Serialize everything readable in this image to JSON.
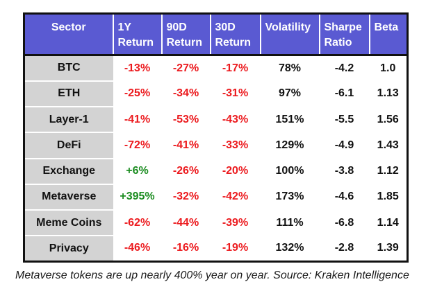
{
  "chart_data": {
    "type": "table",
    "columns": [
      {
        "key": "sector",
        "label": "Sector",
        "colorize_by_sign": false
      },
      {
        "key": "return_1y",
        "label": "1Y\nReturn",
        "colorize_by_sign": true
      },
      {
        "key": "return_90d",
        "label": "90D\nReturn",
        "colorize_by_sign": true
      },
      {
        "key": "return_30d",
        "label": "30D\nReturn",
        "colorize_by_sign": true
      },
      {
        "key": "volatility",
        "label": "Volatility",
        "colorize_by_sign": false
      },
      {
        "key": "sharpe_ratio",
        "label": "Sharpe\nRatio",
        "colorize_by_sign": false
      },
      {
        "key": "beta",
        "label": "Beta",
        "colorize_by_sign": false
      }
    ],
    "rows": [
      {
        "sector": "BTC",
        "return_1y": "-13%",
        "return_90d": "-27%",
        "return_30d": "-17%",
        "volatility": "78%",
        "sharpe_ratio": "-4.2",
        "beta": "1.0"
      },
      {
        "sector": "ETH",
        "return_1y": "-25%",
        "return_90d": "-34%",
        "return_30d": "-31%",
        "volatility": "97%",
        "sharpe_ratio": "-6.1",
        "beta": "1.13"
      },
      {
        "sector": "Layer-1",
        "return_1y": "-41%",
        "return_90d": "-53%",
        "return_30d": "-43%",
        "volatility": "151%",
        "sharpe_ratio": "-5.5",
        "beta": "1.56"
      },
      {
        "sector": "DeFi",
        "return_1y": "-72%",
        "return_90d": "-41%",
        "return_30d": "-33%",
        "volatility": "129%",
        "sharpe_ratio": "-4.9",
        "beta": "1.43"
      },
      {
        "sector": "Exchange",
        "return_1y": "+6%",
        "return_90d": "-26%",
        "return_30d": "-20%",
        "volatility": "100%",
        "sharpe_ratio": "-3.8",
        "beta": "1.12"
      },
      {
        "sector": "Metaverse",
        "return_1y": "+395%",
        "return_90d": "-32%",
        "return_30d": "-42%",
        "volatility": "173%",
        "sharpe_ratio": "-4.6",
        "beta": "1.85"
      },
      {
        "sector": "Meme Coins",
        "return_1y": "-62%",
        "return_90d": "-44%",
        "return_30d": "-39%",
        "volatility": "111%",
        "sharpe_ratio": "-6.8",
        "beta": "1.14"
      },
      {
        "sector": "Privacy",
        "return_1y": "-46%",
        "return_90d": "-16%",
        "return_30d": "-19%",
        "volatility": "132%",
        "sharpe_ratio": "-2.8",
        "beta": "1.39"
      }
    ],
    "title": "",
    "legend": "none",
    "grid": "header and sector column only"
  },
  "caption": "Metaverse tokens are up nearly 400% year on year. Source: Kraken Intelligence",
  "colors": {
    "header_bg": "#5A5AD2",
    "header_text": "#FFFFFF",
    "sector_bg": "#D3D3D3",
    "negative": "#EC1A1E",
    "positive": "#1B8C20",
    "border": "#111111",
    "text": "#111111"
  }
}
